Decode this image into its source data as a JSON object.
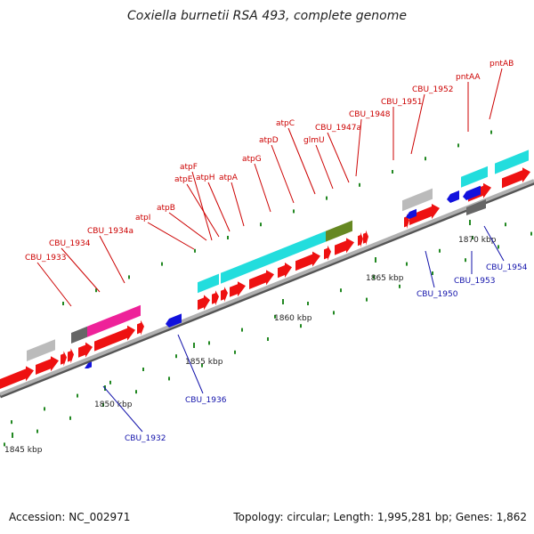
{
  "title": "Coxiella burnetii RSA 493, complete genome",
  "footer": {
    "accession": "Accession: NC_002971",
    "summary": "Topology: circular; Length: 1,995,281 bp; Genes: 1,862"
  },
  "colors": {
    "backbone": "#8c8c8c",
    "forward_gene": "#ee1111",
    "reverse_gene": "#1111dd",
    "atp_operon": "#22dddd",
    "glmU": "#668822",
    "CBU_1934a": "#ee2299",
    "hypothetical": "#bbbbbb",
    "dark_gray": "#666666",
    "tick": "#228822",
    "label_upper": "#cc0000",
    "label_lower": "#1111aa"
  },
  "scale": {
    "unit": "kbp",
    "markers": [
      {
        "label": "1845 kbp"
      },
      {
        "label": "1850 kbp"
      },
      {
        "label": "1855 kbp"
      },
      {
        "label": "1860 kbp"
      },
      {
        "label": "1865 kbp"
      },
      {
        "label": "1870 kbp"
      }
    ]
  },
  "upper_labels": [
    "CBU_1933",
    "CBU_1934",
    "CBU_1934a",
    "atpI",
    "atpB",
    "atpE",
    "atpF",
    "atpH",
    "atpA",
    "atpG",
    "atpD",
    "atpC",
    "glmU",
    "CBU_1947a",
    "CBU_1948",
    "CBU_1951",
    "CBU_1952",
    "pntAA",
    "pntAB"
  ],
  "lower_labels": [
    "CBU_1932",
    "CBU_1936",
    "CBU_1950",
    "CBU_1953",
    "CBU_1954"
  ]
}
